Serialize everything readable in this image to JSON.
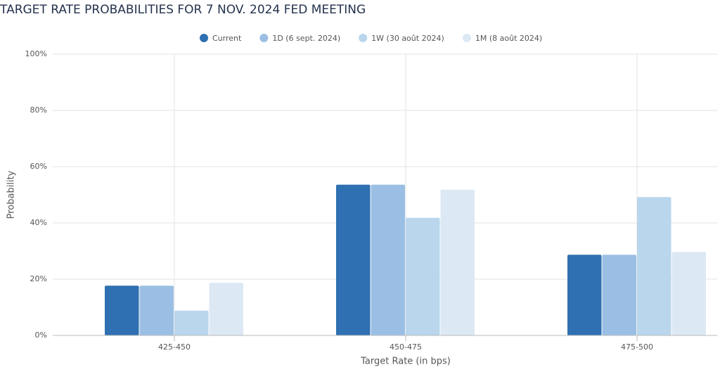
{
  "chart_data": {
    "type": "bar",
    "title": "TARGET RATE PROBABILITIES FOR 7 NOV. 2024 FED MEETING",
    "x_label": "Target Rate (in bps)",
    "y_label": "Probability",
    "categories": [
      "425-450",
      "450-475",
      "475-500"
    ],
    "series": [
      {
        "name": "Current",
        "color": "#2e70b1",
        "values": [
          17.7,
          53.6,
          28.7
        ]
      },
      {
        "name": "1D (6 sept. 2024)",
        "color": "#9bbfe4",
        "values": [
          17.7,
          53.6,
          28.7
        ]
      },
      {
        "name": "1W (30 août 2024)",
        "color": "#b9d6ec",
        "values": [
          8.8,
          41.8,
          49.2
        ]
      },
      {
        "name": "1M (8 août 2024)",
        "color": "#dce8f4",
        "values": [
          18.7,
          51.8,
          29.7
        ]
      }
    ],
    "ylim": [
      0,
      100
    ],
    "yticks": [
      {
        "value": 0,
        "label": "0%"
      },
      {
        "value": 20,
        "label": "20%"
      },
      {
        "value": 40,
        "label": "40%"
      },
      {
        "value": 60,
        "label": "60%"
      },
      {
        "value": 80,
        "label": "80%"
      },
      {
        "value": 100,
        "label": "100%"
      }
    ],
    "grid": true
  }
}
